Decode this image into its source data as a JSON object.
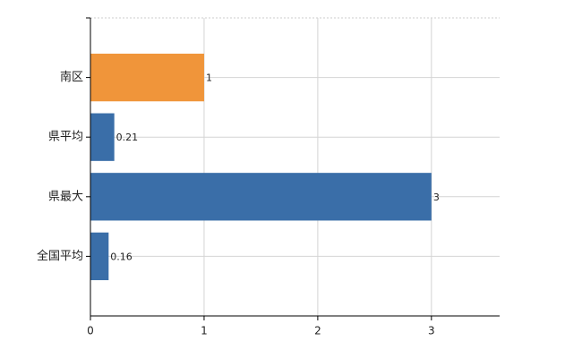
{
  "chart_data": {
    "type": "bar",
    "orientation": "horizontal",
    "categories": [
      "南区",
      "県平均",
      "県最大",
      "全国平均"
    ],
    "values": [
      1,
      0.21,
      3,
      0.16
    ],
    "colors": [
      "#f0953a",
      "#3a6ea8",
      "#3a6ea8",
      "#3a6ea8"
    ],
    "xlim": [
      0,
      3.6
    ],
    "xticks": [
      0,
      1,
      2,
      3
    ],
    "grid": true
  }
}
